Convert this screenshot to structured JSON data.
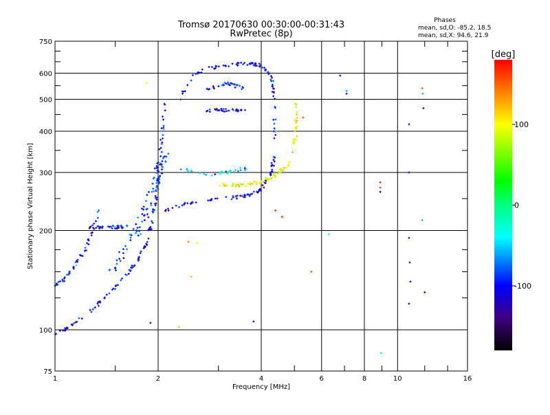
{
  "chart_data": {
    "type": "scatter",
    "title": "Tromsø 20170630 00:30:00-00:31:43",
    "subtitle": "RwPretec (8p)",
    "xlabel": "Frequency [MHz]",
    "ylabel": "Stationary phase Virtual Height [km]",
    "xscale": "log",
    "yscale": "log",
    "xlim": [
      1,
      16
    ],
    "ylim": [
      75,
      750
    ],
    "xticks": [
      "1",
      "2",
      "4",
      "6",
      "8",
      "10",
      "16"
    ],
    "xtick_values": [
      1,
      2,
      4,
      6,
      8,
      10,
      16
    ],
    "yticks": [
      "75",
      "100",
      "200",
      "300",
      "400",
      "500",
      "600",
      "750"
    ],
    "ytick_values": [
      75,
      100,
      200,
      300,
      400,
      500,
      600,
      750
    ],
    "grid": true,
    "stats": {
      "heading": "Phases",
      "line_o": "mean, sd,O: -85.2, 18.5",
      "line_x": "mean, sd,X:  94.6, 21.9"
    },
    "colorbar": {
      "label": "[deg]",
      "range": [
        -180,
        180
      ],
      "ticks": [
        "100",
        "0",
        "-100"
      ],
      "tick_values": [
        100,
        0,
        -100
      ],
      "stops": [
        [
          -180,
          "#000000"
        ],
        [
          -140,
          "#400080"
        ],
        [
          -100,
          "#0000ff"
        ],
        [
          -40,
          "#00ffff"
        ],
        [
          0,
          "#00ff80"
        ],
        [
          30,
          "#00ff00"
        ],
        [
          100,
          "#ffff00"
        ],
        [
          140,
          "#ff8000"
        ],
        [
          180,
          "#ff0000"
        ]
      ]
    },
    "traces": [
      {
        "name": "low-o-trace",
        "phase": -105,
        "n": 120,
        "path": [
          [
            1.0,
            97.6
          ],
          [
            1.097,
            101
          ],
          [
            1.26,
            113
          ],
          [
            1.447,
            130
          ],
          [
            1.625,
            147
          ],
          [
            1.74,
            162
          ],
          [
            1.866,
            187
          ],
          [
            1.954,
            237
          ],
          [
            2.0,
            287
          ],
          [
            2.05,
            383
          ],
          [
            2.1,
            536
          ]
        ]
      },
      {
        "name": "low-x-trace",
        "phase": -95,
        "n": 50,
        "path": [
          [
            1.0,
            136
          ],
          [
            1.072,
            143
          ],
          [
            1.149,
            158
          ],
          [
            1.231,
            178
          ],
          [
            1.289,
            200
          ],
          [
            1.35,
            237
          ]
        ]
      },
      {
        "name": "plateau",
        "phase": -100,
        "n": 35,
        "path": [
          [
            1.26,
            205
          ],
          [
            1.447,
            205
          ],
          [
            1.625,
            205
          ]
        ]
      },
      {
        "name": "spread-cluster",
        "phase": -90,
        "n": 90,
        "path": [
          [
            1.447,
            147
          ],
          [
            1.74,
            200
          ],
          [
            1.866,
            237
          ],
          [
            2.0,
            301
          ],
          [
            2.1,
            340
          ]
        ],
        "spread": 0.06
      },
      {
        "name": "upper-blue-trace",
        "phase": -110,
        "n": 80,
        "path": [
          [
            2.1,
            231
          ],
          [
            2.52,
            243
          ],
          [
            3.03,
            249
          ],
          [
            3.64,
            255
          ],
          [
            4.0,
            267
          ],
          [
            4.28,
            301
          ],
          [
            4.38,
            340
          ]
        ]
      },
      {
        "name": "yellow-x-trace",
        "phase": 100,
        "n": 90,
        "path": [
          [
            3.03,
            274
          ],
          [
            3.48,
            274
          ],
          [
            4.0,
            281
          ],
          [
            4.38,
            294
          ],
          [
            4.81,
            316
          ],
          [
            5.04,
            383
          ],
          [
            5.04,
            487
          ]
        ]
      },
      {
        "name": "top-arc",
        "phase": -105,
        "n": 90,
        "path": [
          [
            2.3,
            498
          ],
          [
            2.52,
            590
          ],
          [
            2.76,
            620
          ],
          [
            3.17,
            634
          ],
          [
            3.64,
            643
          ],
          [
            4.0,
            634
          ],
          [
            4.28,
            590
          ],
          [
            4.38,
            487
          ],
          [
            4.38,
            383
          ]
        ]
      },
      {
        "name": "mid-cyan",
        "phase": -50,
        "n": 30,
        "path": [
          [
            2.3,
            309
          ],
          [
            2.76,
            294
          ],
          [
            3.17,
            301
          ],
          [
            3.64,
            309
          ]
        ]
      },
      {
        "name": "upper-inner",
        "phase": -110,
        "n": 30,
        "path": [
          [
            2.76,
            463
          ],
          [
            3.17,
            463
          ],
          [
            3.64,
            463
          ]
        ]
      },
      {
        "name": "upper-inner-2",
        "phase": -90,
        "n": 30,
        "path": [
          [
            2.76,
            536
          ],
          [
            3.17,
            560
          ],
          [
            3.64,
            536
          ]
        ]
      }
    ],
    "isolated_points": [
      [
        7.1,
        520,
        -120
      ],
      [
        7.1,
        530,
        -60
      ],
      [
        8.9,
        270,
        160
      ],
      [
        8.9,
        280,
        170
      ],
      [
        8.9,
        262,
        -160
      ],
      [
        8.95,
        85,
        -30
      ],
      [
        10.8,
        420,
        -120
      ],
      [
        10.8,
        300,
        -100
      ],
      [
        10.8,
        190,
        -140
      ],
      [
        10.85,
        160,
        -110
      ],
      [
        10.9,
        140,
        -100
      ],
      [
        10.8,
        120,
        -120
      ],
      [
        11.85,
        520,
        -60
      ],
      [
        11.9,
        470,
        -110
      ],
      [
        11.8,
        540,
        150
      ],
      [
        11.8,
        215,
        -60
      ],
      [
        12.0,
        130,
        -110
      ],
      [
        6.3,
        195,
        -40
      ],
      [
        4.6,
        220,
        170
      ],
      [
        4.4,
        230,
        160
      ],
      [
        1.9,
        105,
        -130
      ],
      [
        2.3,
        102,
        120
      ],
      [
        2.5,
        145,
        120
      ],
      [
        2.45,
        185,
        140
      ],
      [
        2.6,
        183,
        100
      ],
      [
        3.8,
        106,
        -130
      ],
      [
        1.85,
        560,
        100
      ],
      [
        5.6,
        150,
        150
      ],
      [
        5.3,
        440,
        160
      ],
      [
        6.8,
        590,
        -100
      ]
    ]
  }
}
